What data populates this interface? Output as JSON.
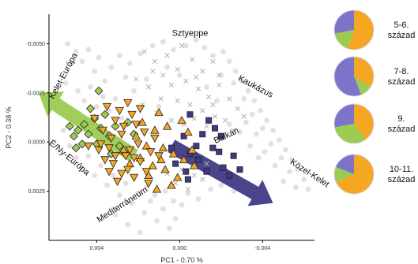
{
  "chart_data": {
    "type": "scatter",
    "title": "",
    "xlabel": "PC1 - 0.70 %",
    "ylabel": "PC2 - 0.38 %",
    "x_reversed": true,
    "y_reversed": true,
    "xlim": [
      0.0063,
      -0.0065
    ],
    "ylim": [
      -0.0065,
      0.005
    ],
    "x_ticks": [
      {
        "value": 0.004,
        "label": "0.004"
      },
      {
        "value": 0.0,
        "label": "0.000"
      },
      {
        "value": -0.004,
        "label": "-0.004"
      }
    ],
    "y_ticks": [
      {
        "value": -0.005,
        "label": "-0.0050"
      },
      {
        "value": -0.0025,
        "label": "-0.0025"
      },
      {
        "value": 0.0,
        "label": "0.0000"
      },
      {
        "value": 0.0025,
        "label": "0.0025"
      }
    ],
    "grid": false,
    "region_labels": [
      {
        "text": "Sztyeppe",
        "x": -0.0005,
        "y": -0.0054,
        "rotation": 0
      },
      {
        "text": "Kelet-Európa",
        "x": 0.0055,
        "y": -0.0033,
        "rotation": -62
      },
      {
        "text": "Kaukázus",
        "x": -0.0036,
        "y": -0.0027,
        "rotation": 28
      },
      {
        "text": "Balkán",
        "x": -0.0023,
        "y": -0.0002,
        "rotation": -25
      },
      {
        "text": "É/Ny-Európa",
        "x": 0.0054,
        "y": 0.0009,
        "rotation": 40
      },
      {
        "text": "Mediterráneum",
        "x": 0.0027,
        "y": 0.0033,
        "rotation": -33
      },
      {
        "text": "Közel-Kelet",
        "x": -0.0062,
        "y": 0.0017,
        "rotation": 33
      }
    ],
    "arrows": [
      {
        "color": "#9CCB52",
        "from": [
          0.0022,
          0.0007
        ],
        "to": [
          0.0068,
          -0.0025
        ]
      },
      {
        "color": "#3F3A85",
        "from": [
          0.0004,
          0.0002
        ],
        "to": [
          -0.0045,
          0.0031
        ]
      }
    ],
    "series": [
      {
        "marker": "cross",
        "color": "#C8C8C8",
        "points": [
          [
            0.0017,
            -0.0046
          ],
          [
            0.0012,
            -0.0041
          ],
          [
            0.0006,
            -0.0044
          ],
          [
            0.0001,
            -0.0037
          ],
          [
            -0.0006,
            -0.0042
          ],
          [
            -0.0011,
            -0.0036
          ],
          [
            -0.0016,
            -0.0041
          ],
          [
            -0.0003,
            -0.0031
          ],
          [
            0.0004,
            -0.0029
          ],
          [
            -0.0009,
            -0.0027
          ],
          [
            -0.0014,
            -0.0023
          ],
          [
            -0.0019,
            -0.0029
          ],
          [
            -0.0024,
            -0.0022
          ],
          [
            0.0001,
            -0.0021
          ],
          [
            -0.0005,
            -0.0019
          ],
          [
            -0.0011,
            -0.0016
          ],
          [
            -0.0017,
            -0.0013
          ],
          [
            -0.0022,
            -0.0011
          ],
          [
            0.0008,
            -0.0034
          ],
          [
            0.0015,
            -0.0028
          ],
          [
            -0.0001,
            -0.0049
          ],
          [
            0.0009,
            -0.0022
          ],
          [
            -0.0028,
            -0.0017
          ],
          [
            -0.0007,
            -0.0012
          ],
          [
            0.0011,
            -0.0015
          ],
          [
            0.0018,
            -0.0019
          ],
          [
            -0.0013,
            -0.0008
          ],
          [
            -0.0026,
            -0.0006
          ],
          [
            -0.0031,
            -0.0013
          ],
          [
            -0.0002,
            -0.0009
          ],
          [
            0.0004,
            -0.0011
          ],
          [
            -0.0019,
            -0.0034
          ],
          [
            0.0013,
            -0.0036
          ],
          [
            -0.0008,
            -0.0033
          ],
          [
            0.0021,
            -0.0032
          ],
          [
            -0.0016,
            -0.0019
          ],
          [
            -0.0001,
            0.0014
          ],
          [
            -0.0007,
            0.0017
          ],
          [
            0.0002,
            0.0021
          ],
          [
            -0.0013,
            0.0011
          ],
          [
            0.0006,
            0.0016
          ],
          [
            -0.0004,
            0.0024
          ],
          [
            -0.0011,
            0.0019
          ]
        ]
      },
      {
        "marker": "diamond",
        "color": "#9CCB52",
        "points": [
          [
            0.0049,
            -0.0006
          ],
          [
            0.0046,
            -0.0009
          ],
          [
            0.0051,
            -0.0003
          ],
          [
            0.0044,
            -0.0004
          ],
          [
            0.0041,
            -0.0012
          ],
          [
            0.0047,
            0.0001
          ],
          [
            0.0043,
            -0.0017
          ],
          [
            0.0053,
            -0.0008
          ],
          [
            0.0038,
            -0.0007
          ],
          [
            0.004,
            0.0001
          ],
          [
            0.0036,
            -0.0014
          ],
          [
            0.0034,
            -0.0003
          ],
          [
            0.0031,
            -0.0008
          ],
          [
            0.0029,
            0.0002
          ],
          [
            0.0033,
            0.0006
          ],
          [
            0.0025,
            -0.001
          ],
          [
            0.0022,
            -0.0004
          ],
          [
            0.0039,
            -0.0026
          ],
          [
            0.0027,
            0.0005
          ],
          [
            0.005,
            0.0003
          ]
        ]
      },
      {
        "marker": "square",
        "color": "#3F3A85",
        "points": [
          [
            -0.0005,
            -0.0014
          ],
          [
            -0.0011,
            -0.0004
          ],
          [
            -0.0014,
            -0.0011
          ],
          [
            -0.0008,
            0.0002
          ],
          [
            -0.0002,
            -0.0003
          ],
          [
            -0.0016,
            0.0003
          ],
          [
            -0.0009,
            0.0009
          ],
          [
            -0.0019,
            0.0005
          ],
          [
            -0.0021,
            0.0013
          ],
          [
            -0.0024,
            0.0017
          ],
          [
            -0.0013,
            0.0015
          ],
          [
            -0.0005,
            0.0006
          ],
          [
            -0.0026,
            0.0007
          ],
          [
            -0.0029,
            0.0014
          ],
          [
            -0.0017,
            -0.0007
          ],
          [
            0.0002,
            0.0011
          ],
          [
            -0.0004,
            0.0019
          ],
          [
            0.0004,
            0.0003
          ],
          [
            -0.0003,
            0.0015
          ],
          [
            -0.002,
            -0.0003
          ]
        ]
      },
      {
        "marker": "triangle-up",
        "color": "#F5A623",
        "points": [
          [
            0.0006,
            -0.0008
          ],
          [
            -0.0001,
            -0.0011
          ],
          [
            0.0012,
            -0.0006
          ],
          [
            0.0003,
            0.0006
          ],
          [
            0.0016,
            0.0002
          ],
          [
            0.0009,
            0.0009
          ],
          [
            -0.0004,
            -0.0005
          ],
          [
            0.0021,
            -0.0003
          ],
          [
            0.0007,
            0.0014
          ],
          [
            0.0013,
            0.0012
          ],
          [
            -0.0006,
            0.0004
          ],
          [
            0.0001,
            0.0018
          ],
          [
            0.0019,
            0.0008
          ],
          [
            0.0024,
            0.0011
          ],
          [
            0.001,
            -0.0015
          ],
          [
            0.0004,
            0.0022
          ],
          [
            0.0015,
            0.0017
          ],
          [
            -0.0002,
            0.0009
          ],
          [
            0.0027,
            0.0004
          ],
          [
            0.0008,
            0.0003
          ],
          [
            0.0018,
            -0.001
          ],
          [
            0.0011,
            0.0024
          ],
          [
            -0.0007,
            0.0012
          ]
        ]
      },
      {
        "marker": "triangle-down",
        "color": "#F5A623",
        "points": [
          [
            0.0031,
            -0.0011
          ],
          [
            0.0028,
            -0.0004
          ],
          [
            0.0034,
            0.0003
          ],
          [
            0.0026,
            0.0007
          ],
          [
            0.0023,
            -0.0014
          ],
          [
            0.0037,
            -0.0006
          ],
          [
            0.002,
            0.0001
          ],
          [
            0.0032,
            0.0011
          ],
          [
            0.0029,
            -0.0016
          ],
          [
            0.0025,
            0.0014
          ],
          [
            0.0017,
            -0.0005
          ],
          [
            0.0039,
            0.0004
          ],
          [
            0.0035,
            -0.0018
          ],
          [
            0.0022,
            0.0018
          ],
          [
            0.0014,
            0.0005
          ],
          [
            0.003,
            0.002
          ],
          [
            0.0041,
            -0.0012
          ],
          [
            0.0019,
            0.001
          ],
          [
            0.0027,
            -0.0008
          ],
          [
            0.0033,
            -0.0002
          ],
          [
            0.0024,
            0.0004
          ],
          [
            0.0036,
            0.0009
          ],
          [
            0.0021,
            -0.0009
          ],
          [
            0.0016,
            0.0015
          ],
          [
            0.0028,
            0.0016
          ],
          [
            0.0012,
            -0.0002
          ],
          [
            0.0038,
            0.0001
          ],
          [
            0.0025,
            -0.002
          ],
          [
            0.0031,
            0.0007
          ],
          [
            0.0019,
            -0.0017
          ],
          [
            0.0044,
            0.0002
          ],
          [
            0.0015,
            0.0021
          ],
          [
            0.0034,
            0.0015
          ],
          [
            0.0022,
            0.0008
          ],
          [
            0.001,
            0.0007
          ]
        ]
      }
    ],
    "background_cloud": {
      "color": "#E6DFE2",
      "points": [
        [
          0.0054,
          -0.005
        ],
        [
          0.005,
          -0.0046
        ],
        [
          0.0047,
          -0.0041
        ],
        [
          0.0044,
          -0.0047
        ],
        [
          0.0041,
          -0.0036
        ],
        [
          0.0039,
          -0.0043
        ],
        [
          0.0036,
          -0.0031
        ],
        [
          0.0033,
          -0.0038
        ],
        [
          0.0052,
          -0.004
        ],
        [
          0.0055,
          -0.003
        ],
        [
          0.0049,
          -0.0026
        ],
        [
          0.0046,
          -0.0021
        ],
        [
          0.0043,
          -0.0028
        ],
        [
          0.004,
          -0.0018
        ],
        [
          0.0037,
          -0.0023
        ],
        [
          0.0034,
          -0.0016
        ],
        [
          0.0031,
          -0.0022
        ],
        [
          0.0028,
          -0.0012
        ],
        [
          0.0058,
          -0.0015
        ],
        [
          0.0056,
          -0.0006
        ],
        [
          0.0053,
          0.0002
        ],
        [
          0.005,
          0.0008
        ],
        [
          0.0047,
          0.0013
        ],
        [
          0.0044,
          0.0007
        ],
        [
          0.0041,
          0.0017
        ],
        [
          0.0038,
          0.0012
        ],
        [
          0.0035,
          0.0022
        ],
        [
          0.0032,
          0.0017
        ],
        [
          0.0029,
          0.0027
        ],
        [
          0.0026,
          0.0021
        ],
        [
          0.0023,
          0.0031
        ],
        [
          0.002,
          0.0026
        ],
        [
          0.0017,
          0.0036
        ],
        [
          0.0014,
          0.003
        ],
        [
          0.0011,
          0.004
        ],
        [
          0.0008,
          0.0034
        ],
        [
          0.0005,
          0.0044
        ],
        [
          0.0002,
          0.0039
        ],
        [
          -0.0001,
          0.0032
        ],
        [
          -0.0004,
          0.0026
        ],
        [
          0.0025,
          0.0042
        ],
        [
          0.0019,
          0.0046
        ],
        [
          0.0031,
          0.0037
        ],
        [
          0.0007,
          0.0025
        ],
        [
          -0.0021,
          -0.0046
        ],
        [
          -0.0024,
          -0.0041
        ],
        [
          -0.0027,
          -0.0036
        ],
        [
          -0.003,
          -0.0031
        ],
        [
          -0.0033,
          -0.0026
        ],
        [
          -0.0036,
          -0.0021
        ],
        [
          -0.0039,
          -0.0016
        ],
        [
          -0.0042,
          -0.0011
        ],
        [
          -0.0045,
          -0.0006
        ],
        [
          -0.0048,
          -0.0001
        ],
        [
          -0.0051,
          0.0004
        ],
        [
          -0.0054,
          0.0009
        ],
        [
          -0.0057,
          0.0014
        ],
        [
          -0.006,
          0.0019
        ],
        [
          -0.0026,
          -0.003
        ],
        [
          -0.0031,
          -0.0022
        ],
        [
          -0.0035,
          -0.0014
        ],
        [
          -0.004,
          -0.0007
        ],
        [
          -0.0044,
          0.0001
        ],
        [
          -0.0049,
          0.0008
        ],
        [
          -0.0053,
          0.0015
        ],
        [
          -0.002,
          -0.0034
        ],
        [
          -0.0016,
          -0.0044
        ],
        [
          -0.0012,
          -0.0048
        ],
        [
          -0.0008,
          -0.0052
        ],
        [
          -0.0003,
          -0.0049
        ],
        [
          0.0003,
          -0.0047
        ],
        [
          0.0008,
          -0.0051
        ],
        [
          0.0013,
          -0.0049
        ],
        [
          0.0019,
          -0.0045
        ],
        [
          0.0024,
          -0.004
        ],
        [
          0.0029,
          -0.0044
        ],
        [
          -0.0032,
          -0.001
        ],
        [
          -0.0037,
          -0.0004
        ],
        [
          -0.0041,
          0.0005
        ],
        [
          -0.0046,
          0.0012
        ],
        [
          -0.005,
          0.002
        ],
        [
          -0.0056,
          0.0023
        ],
        [
          -0.0062,
          0.0024
        ],
        [
          -0.0038,
          0.0008
        ],
        [
          -0.0034,
          0.0002
        ],
        [
          -0.0029,
          -0.0005
        ],
        [
          -0.0024,
          -0.0009
        ],
        [
          -0.0018,
          -0.0021
        ],
        [
          -0.0013,
          -0.0028
        ],
        [
          0.0,
          -0.0034
        ],
        [
          0.0006,
          -0.0038
        ],
        [
          0.0016,
          -0.0032
        ],
        [
          0.0022,
          -0.0026
        ],
        [
          0.0026,
          -0.0033
        ],
        [
          0.001,
          -0.0018
        ],
        [
          -0.0015,
          0.0024
        ],
        [
          -0.0009,
          0.0029
        ],
        [
          -0.002,
          0.0022
        ],
        [
          -0.0026,
          0.0025
        ],
        [
          0.0012,
          0.0027
        ],
        [
          0.0016,
          0.0023
        ],
        [
          0.0003,
          0.003
        ]
      ]
    },
    "pie_charts": [
      {
        "label_lines": [
          "5-6.",
          "század"
        ],
        "slices": [
          {
            "value": 55,
            "color": "#F5A623"
          },
          {
            "value": 17,
            "color": "#9CCB52"
          },
          {
            "value": 28,
            "color": "#7B74C9"
          }
        ]
      },
      {
        "label_lines": [
          "7-8.",
          "század"
        ],
        "slices": [
          {
            "value": 34,
            "color": "#F5A623"
          },
          {
            "value": 10,
            "color": "#9CCB52"
          },
          {
            "value": 56,
            "color": "#7B74C9"
          }
        ]
      },
      {
        "label_lines": [
          "9.",
          "század"
        ],
        "slices": [
          {
            "value": 40,
            "color": "#F5A623"
          },
          {
            "value": 32,
            "color": "#9CCB52"
          },
          {
            "value": 28,
            "color": "#7B74C9"
          }
        ]
      },
      {
        "label_lines": [
          "10-11.",
          "század"
        ],
        "slices": [
          {
            "value": 68,
            "color": "#F5A623"
          },
          {
            "value": 13,
            "color": "#9CCB52"
          },
          {
            "value": 19,
            "color": "#7B74C9"
          }
        ]
      }
    ]
  }
}
